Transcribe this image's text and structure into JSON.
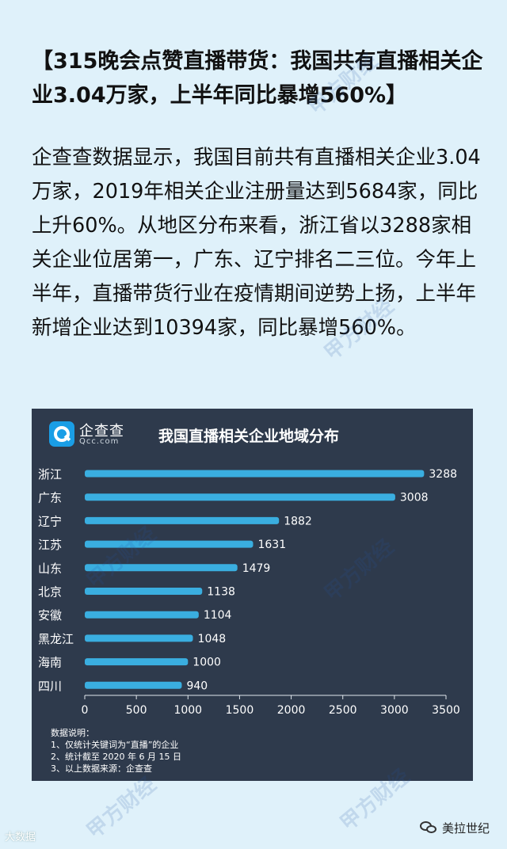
{
  "article": {
    "headline": "【315晚会点赞直播带货：我国共有直播相关企业3.04万家，上半年同比暴增560%】",
    "body": "企查查数据显示，我国目前共有直播相关企业3.04万家，2019年相关企业注册量达到5684家，同比上升60%。从地区分布来看，浙江省以3288家相关企业位居第一，广东、辽宁排名二三位。今年上半年，直播带货行业在疫情期间逆势上扬，上半年新增企业达到10394家，同比暴增560%。"
  },
  "logo": {
    "name": "企查查",
    "sub": "Qcc.com"
  },
  "watermark": "甲方财经",
  "footer": {
    "left": "大数据",
    "account": "美拉世纪"
  },
  "colors": {
    "bar": "#3aaee0",
    "card": "#2e3a4c",
    "page": "#dff1fa"
  },
  "chart_data": {
    "type": "bar",
    "orientation": "horizontal",
    "title": "我国直播相关企业地域分布",
    "categories": [
      "浙江",
      "广东",
      "辽宁",
      "江苏",
      "山东",
      "北京",
      "安徽",
      "黑龙江",
      "海南",
      "四川"
    ],
    "values": [
      3288,
      3008,
      1882,
      1631,
      1479,
      1138,
      1104,
      1048,
      1000,
      940
    ],
    "xlim": [
      0,
      3500
    ],
    "xticks": [
      0,
      500,
      1000,
      1500,
      2000,
      2500,
      3000,
      3500
    ],
    "grid": false,
    "data_labels": true,
    "notes_title": "数据说明：",
    "notes": [
      "1、仅统计关键词为“直播”的企业",
      "2、统计截至 2020 年 6 月 15 日",
      "3、以上数据来源：企查查"
    ]
  }
}
